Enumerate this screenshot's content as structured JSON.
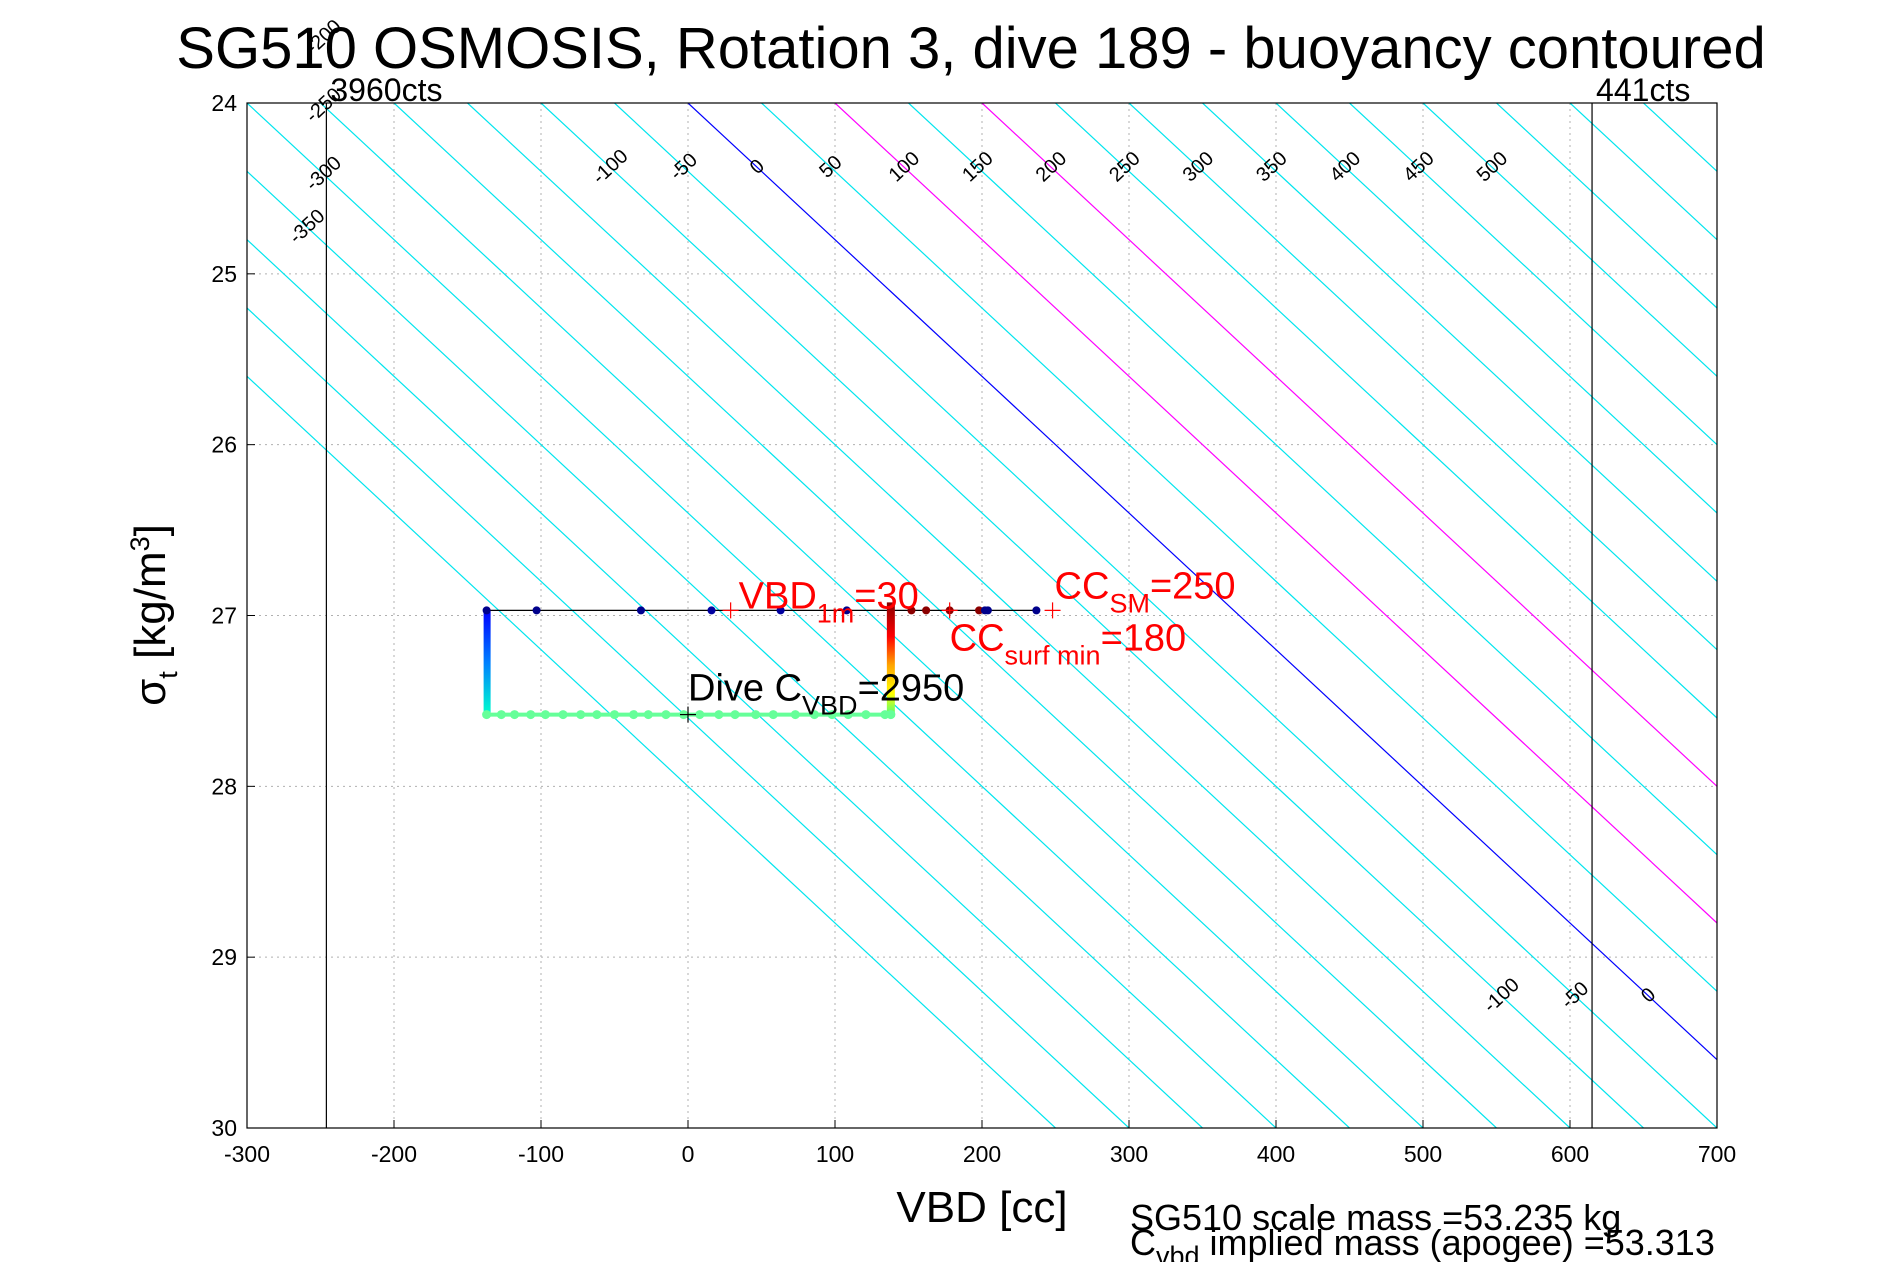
{
  "chart_data": {
    "type": "line",
    "title": "SG510 OSMOSIS, Rotation 3, dive 189 - buoyancy contoured",
    "xlabel": "VBD [cc]",
    "ylabel_main": "σ",
    "ylabel_sub": "t",
    "ylabel_units": " [kg/m",
    "ylabel_sup": "3",
    "ylabel_close": "]",
    "xlim": [
      -300,
      700
    ],
    "ylim": [
      24,
      30
    ],
    "y_reversed": true,
    "grid": true,
    "xticks": [
      -300,
      -200,
      -100,
      0,
      100,
      200,
      300,
      400,
      500,
      600,
      700
    ],
    "yticks": [
      24,
      25,
      26,
      27,
      28,
      29,
      30
    ],
    "contour_slope_cc_per_sigma": 125,
    "contour_levels": [
      -500,
      -450,
      -400,
      -350,
      -300,
      -250,
      -200,
      -150,
      -100,
      -50,
      0,
      50,
      100,
      150,
      200,
      250,
      300,
      350,
      400,
      450,
      500,
      550,
      600,
      650,
      700
    ],
    "contour_colors": {
      "default": "#00e5ee",
      "zero": "#0000ff",
      "highlight": "#ff00ff"
    },
    "highlight_levels": [
      100,
      200
    ],
    "top_contour_labels": [
      "-350",
      "-100",
      "-50",
      "0",
      "50",
      "100",
      "150",
      "200",
      "250",
      "300",
      "350",
      "400",
      "450",
      "500"
    ],
    "bottom_contour_labels": [
      "-100",
      "-50",
      "0",
      "50",
      "100",
      "150",
      "200",
      "250",
      "300",
      "350",
      "400",
      "450",
      "500"
    ],
    "left_contour_labels": [
      "-350",
      "-300",
      "-250",
      "-200",
      "-150"
    ],
    "limit_lines": [
      {
        "x": -246,
        "label": "3960cts"
      },
      {
        "x": 615,
        "label": "441cts"
      }
    ],
    "dive_path": {
      "top_sigma": 26.97,
      "bottom_sigma": 27.58,
      "left_vbd": -137,
      "right_vbd": 138,
      "top_line_end_vbd": 237,
      "top_points": [
        -137,
        -103,
        -32,
        16,
        63,
        108,
        152,
        162,
        178,
        198,
        202,
        204,
        237
      ],
      "top_point_colors": [
        "#00008b",
        "#00008b",
        "#000090",
        "#0000a0",
        "#0000a0",
        "#00008b",
        "#8b0000",
        "#8b0000",
        "#8b0000",
        "#8b0000",
        "#00008b",
        "#00008b",
        "#00008b"
      ],
      "bottom_points": [
        -137,
        -127,
        -118,
        -107,
        -97,
        -85,
        -73,
        -62,
        -50,
        -37,
        -27,
        -15,
        -3,
        8,
        21,
        32,
        46,
        58,
        73,
        86,
        98,
        109,
        121,
        134,
        138
      ]
    },
    "markers": [
      {
        "x": 29,
        "y": 26.97,
        "label_main": "VBD",
        "label_sub": "1m",
        "label_tail": "=30",
        "color": "#ff0000"
      },
      {
        "x": 248,
        "y": 26.97,
        "label_main": "CC",
        "label_sub": "SM",
        "label_tail": "=250",
        "color": "#ff0000"
      },
      {
        "x": 178,
        "y": 26.97,
        "label_main": "CC",
        "label_sub": "surf min",
        "label_tail": "=180",
        "color": "#ff0000"
      },
      {
        "x": 0,
        "y": 27.58,
        "label_main": "Dive C",
        "label_sub": "VBD",
        "label_tail": "=2950",
        "color": "#000000"
      }
    ]
  },
  "footer": {
    "line1": "SG510 scale mass =53.235 kg",
    "line2_main": "C",
    "line2_sub": "vbd",
    "line2_tail": " implied mass (apogee) =53.313"
  }
}
